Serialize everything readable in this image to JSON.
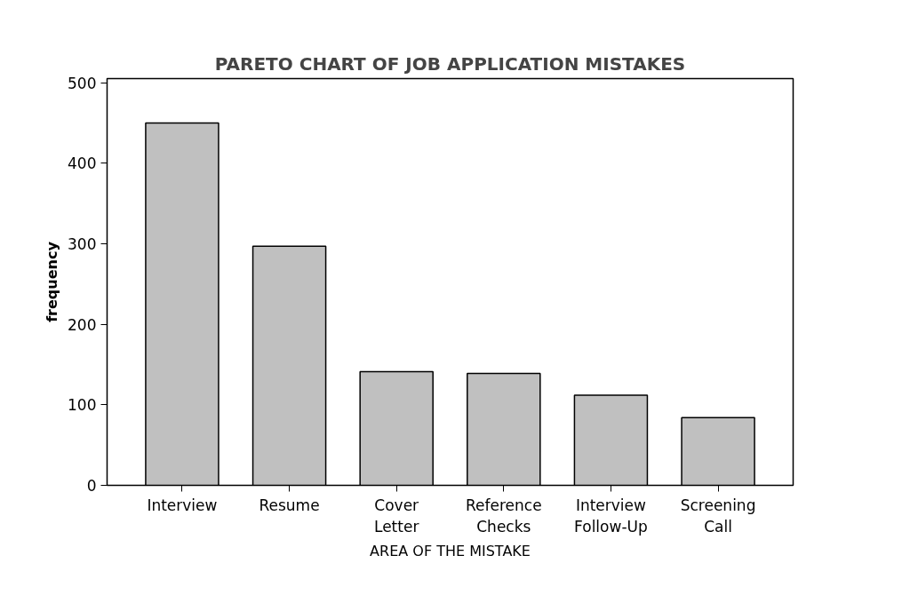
{
  "chart_data": {
    "type": "bar",
    "title": "PARETO CHART OF JOB APPLICATION MISTAKES",
    "xlabel": "AREA OF THE MISTAKE",
    "ylabel": "frequency",
    "categories": [
      "Interview",
      "Resume",
      "Cover Letter",
      "Reference Checks",
      "Interview Follow-Up",
      "Screening Call"
    ],
    "values": [
      450,
      297,
      141,
      139,
      112,
      84
    ],
    "color": "#c0c0c0",
    "ylim": [
      0,
      505
    ],
    "yticks": [
      0,
      100,
      200,
      300,
      400,
      500
    ],
    "grid": false
  }
}
